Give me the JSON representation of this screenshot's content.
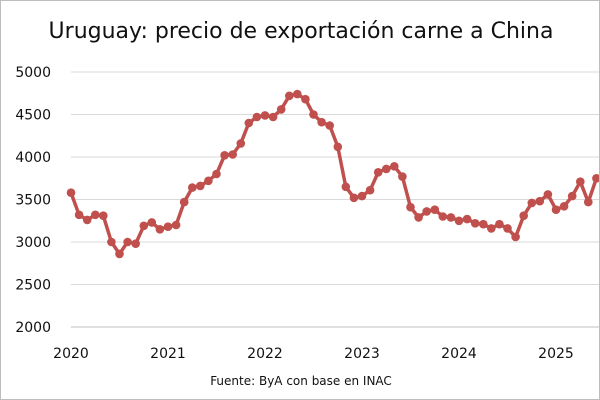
{
  "chart_data": {
    "type": "line",
    "title": "Uruguay: precio de exportación carne a China",
    "xlabel": "",
    "ylabel": "",
    "source": "Fuente: ByA con base en INAC",
    "ylim": [
      2000,
      5000
    ],
    "yticks": [
      2000,
      2500,
      3000,
      3500,
      4000,
      4500,
      5000
    ],
    "xticks": [
      2020,
      2021,
      2022,
      2023,
      2024,
      2025
    ],
    "xlim": [
      2020.0,
      2025.5
    ],
    "grid": "horizontal",
    "legend": "none",
    "series": [
      {
        "color": "#c0504d",
        "x": [
          2020.0,
          2020.083,
          2020.167,
          2020.25,
          2020.333,
          2020.417,
          2020.5,
          2020.583,
          2020.667,
          2020.75,
          2020.833,
          2020.917,
          2021.0,
          2021.083,
          2021.167,
          2021.25,
          2021.333,
          2021.417,
          2021.5,
          2021.583,
          2021.667,
          2021.75,
          2021.833,
          2021.917,
          2022.0,
          2022.083,
          2022.167,
          2022.25,
          2022.333,
          2022.417,
          2022.5,
          2022.583,
          2022.667,
          2022.75,
          2022.833,
          2022.917,
          2023.0,
          2023.083,
          2023.167,
          2023.25,
          2023.333,
          2023.417,
          2023.5,
          2023.583,
          2023.667,
          2023.75,
          2023.833,
          2023.917,
          2024.0,
          2024.083,
          2024.167,
          2024.25,
          2024.333,
          2024.417,
          2024.5,
          2024.583,
          2024.667,
          2024.75,
          2024.833,
          2024.917,
          2025.0,
          2025.083,
          2025.167,
          2025.25,
          2025.333,
          2025.417,
          2025.5
        ],
        "values": [
          3580,
          3320,
          3260,
          3320,
          3310,
          3000,
          2860,
          3000,
          2980,
          3190,
          3230,
          3150,
          3180,
          3200,
          3470,
          3640,
          3660,
          3720,
          3800,
          4020,
          4030,
          4160,
          4400,
          4470,
          4490,
          4470,
          4560,
          4720,
          4740,
          4680,
          4500,
          4410,
          4370,
          4120,
          3650,
          3520,
          3540,
          3610,
          3820,
          3860,
          3890,
          3770,
          3410,
          3290,
          3360,
          3380,
          3300,
          3290,
          3250,
          3270,
          3220,
          3210,
          3160,
          3210,
          3160,
          3060,
          3310,
          3460,
          3480,
          3560,
          3380,
          3420,
          3540,
          3710,
          3470,
          3750,
          3770
        ]
      }
    ]
  }
}
